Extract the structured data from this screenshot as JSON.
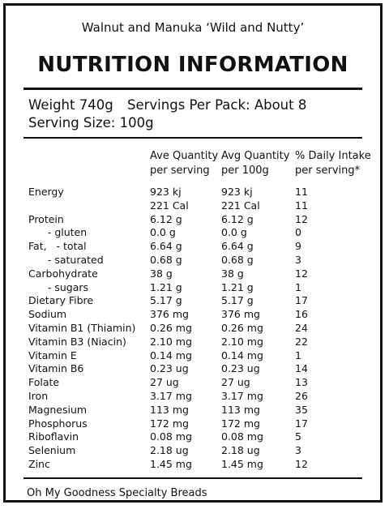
{
  "product_name": "Walnut and Manuka ‘Wild and Nutty’",
  "heading": "NUTRITION INFORMATION",
  "weight": "Weight 740g",
  "servings": "Servings Per Pack: About 8",
  "serving_size": "Serving Size: 100g",
  "columns": {
    "per_serving_line1": "Ave Quantity",
    "per_serving_line2": "per serving",
    "per_100g_line1": "Avg Quantity",
    "per_100g_line2": "per 100g",
    "daily_intake_line1": "% Daily Intake",
    "daily_intake_line2": "per serving*"
  },
  "rows": [
    {
      "label": "Energy",
      "per_serving": "923 kj",
      "per_100g": "923 kj",
      "daily_intake": "11"
    },
    {
      "label": "",
      "per_serving": "221 Cal",
      "per_100g": "221 Cal",
      "daily_intake": "11"
    },
    {
      "label": "Protein",
      "per_serving": "6.12 g",
      "per_100g": "6.12 g",
      "daily_intake": "12"
    },
    {
      "label": "      - gluten",
      "per_serving": "0.0 g",
      "per_100g": "0.0 g",
      "daily_intake": "0"
    },
    {
      "label": "Fat,   - total",
      "per_serving": "6.64 g",
      "per_100g": "6.64 g",
      "daily_intake": "9"
    },
    {
      "label": "      - saturated",
      "per_serving": "0.68 g",
      "per_100g": "0.68 g",
      "daily_intake": "3"
    },
    {
      "label": "Carbohydrate",
      "per_serving": "38 g",
      "per_100g": "38 g",
      "daily_intake": "12"
    },
    {
      "label": "      - sugars",
      "per_serving": "1.21 g",
      "per_100g": "1.21 g",
      "daily_intake": "1"
    },
    {
      "label": "Dietary Fibre",
      "per_serving": "5.17 g",
      "per_100g": "5.17 g",
      "daily_intake": "17"
    },
    {
      "label": "Sodium",
      "per_serving": "376 mg",
      "per_100g": "376 mg",
      "daily_intake": "16"
    },
    {
      "label": "Vitamin B1 (Thiamin)",
      "per_serving": "0.26 mg",
      "per_100g": "0.26 mg",
      "daily_intake": "24"
    },
    {
      "label": "Vitamin B3 (Niacin)",
      "per_serving": "2.10 mg",
      "per_100g": "2.10 mg",
      "daily_intake": "22"
    },
    {
      "label": "Vitamin E",
      "per_serving": "0.14 mg",
      "per_100g": "0.14 mg",
      "daily_intake": "1"
    },
    {
      "label": "Vitamin B6",
      "per_serving": "0.23 ug",
      "per_100g": "0.23 ug",
      "daily_intake": "14"
    },
    {
      "label": "Folate",
      "per_serving": "27 ug",
      "per_100g": "27 ug",
      "daily_intake": "13"
    },
    {
      "label": "Iron",
      "per_serving": "3.17 mg",
      "per_100g": "3.17 mg",
      "daily_intake": "26"
    },
    {
      "label": "Magnesium",
      "per_serving": "113 mg",
      "per_100g": "113 mg",
      "daily_intake": "35"
    },
    {
      "label": "Phosphorus",
      "per_serving": "172 mg",
      "per_100g": "172 mg",
      "daily_intake": "17"
    },
    {
      "label": "Riboflavin",
      "per_serving": "0.08 mg",
      "per_100g": "0.08 mg",
      "daily_intake": "5"
    },
    {
      "label": "Selenium",
      "per_serving": "2.18 ug",
      "per_100g": "2.18 ug",
      "daily_intake": "3"
    },
    {
      "label": "Zinc",
      "per_serving": "1.45 mg",
      "per_100g": "1.45 mg",
      "daily_intake": "12"
    }
  ],
  "footer": "Oh My Goodness Specialty Breads"
}
